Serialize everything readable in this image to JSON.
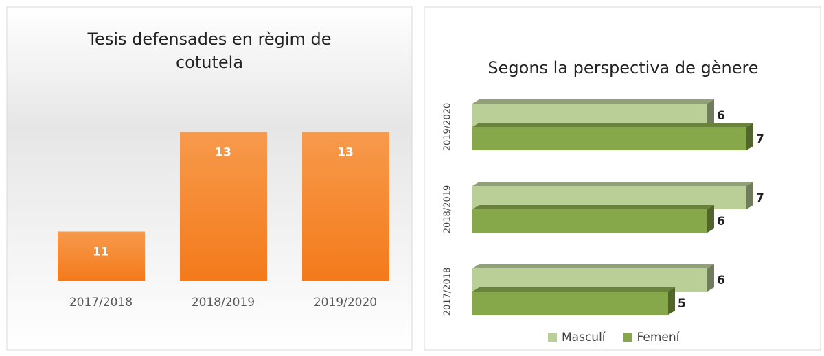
{
  "chart_data": [
    {
      "type": "bar",
      "title": "Tesis defensades en règim de cotutela",
      "categories": [
        "2017/2018",
        "2018/2019",
        "2019/2020"
      ],
      "values": [
        11,
        13,
        13
      ],
      "color": "#f68a30",
      "ylim": [
        10,
        14
      ]
    },
    {
      "type": "barh",
      "title": "Segons la perspectiva de gènere",
      "categories": [
        "2017/2018",
        "2018/2019",
        "2019/2020"
      ],
      "series": [
        {
          "name": "Masculí",
          "color": "#bacf98",
          "values": [
            6,
            7,
            6
          ]
        },
        {
          "name": "Femení",
          "color": "#87a84a",
          "values": [
            5,
            6,
            7
          ]
        }
      ],
      "xlim": [
        0,
        7
      ],
      "legend": "bottom"
    }
  ]
}
